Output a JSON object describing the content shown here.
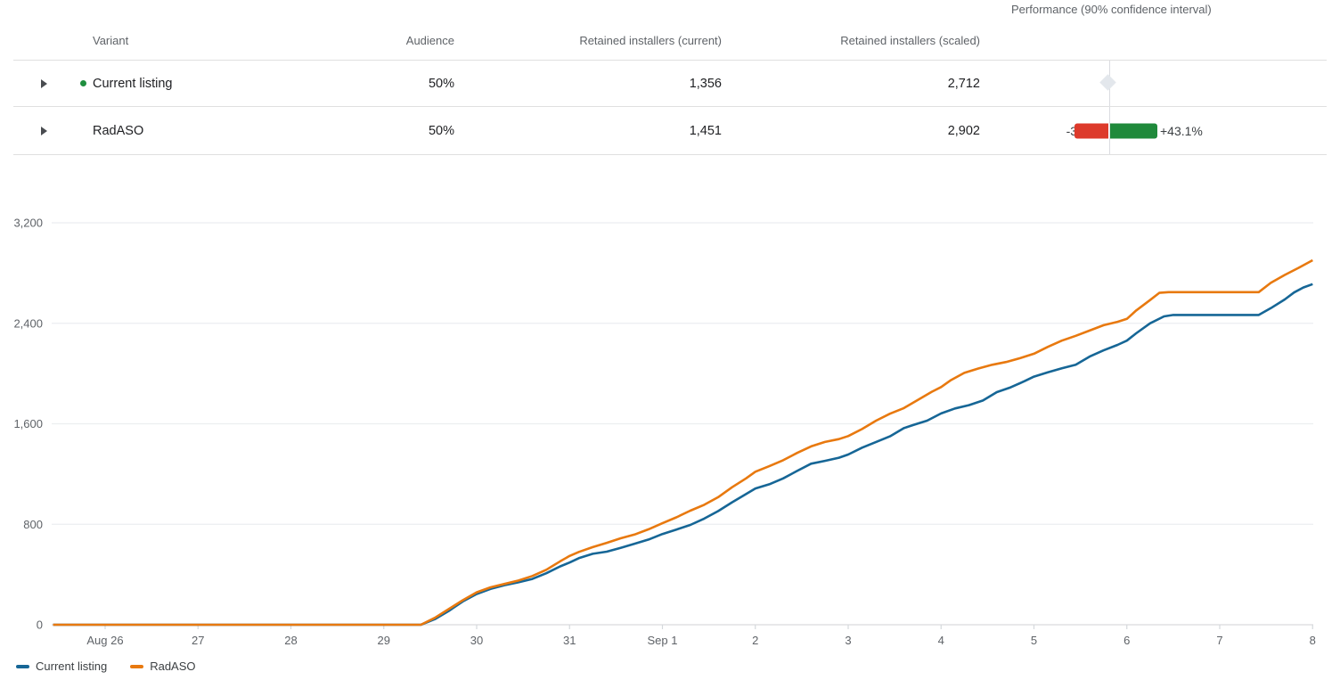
{
  "table": {
    "headers": {
      "variant": "Variant",
      "audience": "Audience",
      "current": "Retained installers (current)",
      "scaled": "Retained installers (scaled)",
      "performance": "Performance (90% confidence interval)"
    },
    "rows": [
      {
        "variant": "Current listing",
        "audience": "50%",
        "current": "1,356",
        "scaled": "2,712",
        "active_dot": true,
        "performance": {
          "type": "baseline-diamond"
        }
      },
      {
        "variant": "RadASO",
        "audience": "50%",
        "current": "1,451",
        "scaled": "2,902",
        "active_dot": false,
        "performance": {
          "type": "ci-bar",
          "low_label": "-30.8%",
          "high_label": "+43.1%",
          "low_pct": -30.8,
          "high_pct": 43.1
        }
      }
    ]
  },
  "colors": {
    "series_blue": "#166696",
    "series_orange": "#e8790f",
    "ci_red": "#dd3a2b",
    "ci_green": "#1f8a3b",
    "grid": "#eceef0",
    "axis_zero": "#d9dbde",
    "tick": "#d5d8dc",
    "axis_text": "#5f6368"
  },
  "chart_data": {
    "type": "line",
    "title": "",
    "xlabel": "",
    "ylabel": "",
    "x_unit": "days since Aug 26",
    "x_range": [
      -0.56,
      13
    ],
    "ylim": [
      0,
      3200
    ],
    "grid": "horizontal",
    "legend_position": "bottom-left",
    "y_ticks": [
      0,
      800,
      1600,
      2400,
      3200
    ],
    "y_tick_labels": [
      "0",
      "800",
      "1,600",
      "2,400",
      "3,200"
    ],
    "x_ticks": [
      0,
      1,
      2,
      3,
      4,
      5,
      6,
      7,
      8,
      9,
      10,
      11,
      12,
      13
    ],
    "x_tick_labels": [
      "Aug 26",
      "27",
      "28",
      "29",
      "30",
      "31",
      "Sep 1",
      "2",
      "3",
      "4",
      "5",
      "6",
      "7",
      "8"
    ],
    "series": [
      {
        "name": "Current listing",
        "color": "#166696",
        "points": [
          [
            -0.56,
            0
          ],
          [
            3.4,
            0
          ],
          [
            3.55,
            45
          ],
          [
            3.7,
            110
          ],
          [
            3.85,
            185
          ],
          [
            4.0,
            245
          ],
          [
            4.15,
            285
          ],
          [
            4.3,
            315
          ],
          [
            4.45,
            338
          ],
          [
            4.6,
            365
          ],
          [
            4.75,
            410
          ],
          [
            4.9,
            465
          ],
          [
            5.0,
            495
          ],
          [
            5.1,
            530
          ],
          [
            5.25,
            565
          ],
          [
            5.4,
            582
          ],
          [
            5.55,
            612
          ],
          [
            5.7,
            645
          ],
          [
            5.85,
            678
          ],
          [
            6.0,
            722
          ],
          [
            6.15,
            758
          ],
          [
            6.3,
            795
          ],
          [
            6.45,
            845
          ],
          [
            6.6,
            905
          ],
          [
            6.75,
            975
          ],
          [
            6.9,
            1040
          ],
          [
            7.0,
            1085
          ],
          [
            7.15,
            1118
          ],
          [
            7.3,
            1165
          ],
          [
            7.45,
            1225
          ],
          [
            7.6,
            1282
          ],
          [
            7.75,
            1305
          ],
          [
            7.9,
            1330
          ],
          [
            8.0,
            1355
          ],
          [
            8.15,
            1410
          ],
          [
            8.3,
            1455
          ],
          [
            8.45,
            1500
          ],
          [
            8.6,
            1565
          ],
          [
            8.7,
            1590
          ],
          [
            8.85,
            1625
          ],
          [
            9.0,
            1682
          ],
          [
            9.15,
            1722
          ],
          [
            9.3,
            1748
          ],
          [
            9.45,
            1785
          ],
          [
            9.6,
            1852
          ],
          [
            9.75,
            1890
          ],
          [
            9.9,
            1940
          ],
          [
            10.0,
            1975
          ],
          [
            10.15,
            2010
          ],
          [
            10.3,
            2042
          ],
          [
            10.45,
            2070
          ],
          [
            10.6,
            2135
          ],
          [
            10.75,
            2185
          ],
          [
            10.9,
            2228
          ],
          [
            11.0,
            2262
          ],
          [
            11.1,
            2320
          ],
          [
            11.25,
            2400
          ],
          [
            11.4,
            2455
          ],
          [
            11.5,
            2466
          ],
          [
            12.42,
            2466
          ],
          [
            12.55,
            2520
          ],
          [
            12.7,
            2590
          ],
          [
            12.8,
            2645
          ],
          [
            12.9,
            2685
          ],
          [
            13.0,
            2712
          ]
        ]
      },
      {
        "name": "RadASO",
        "color": "#e8790f",
        "points": [
          [
            -0.56,
            0
          ],
          [
            3.4,
            0
          ],
          [
            3.55,
            55
          ],
          [
            3.7,
            125
          ],
          [
            3.85,
            195
          ],
          [
            4.0,
            258
          ],
          [
            4.15,
            298
          ],
          [
            4.3,
            325
          ],
          [
            4.45,
            352
          ],
          [
            4.6,
            388
          ],
          [
            4.75,
            438
          ],
          [
            4.9,
            505
          ],
          [
            5.0,
            548
          ],
          [
            5.1,
            580
          ],
          [
            5.25,
            618
          ],
          [
            5.4,
            652
          ],
          [
            5.55,
            688
          ],
          [
            5.7,
            718
          ],
          [
            5.85,
            760
          ],
          [
            6.0,
            808
          ],
          [
            6.15,
            855
          ],
          [
            6.3,
            908
          ],
          [
            6.45,
            955
          ],
          [
            6.6,
            1015
          ],
          [
            6.75,
            1095
          ],
          [
            6.9,
            1165
          ],
          [
            7.0,
            1218
          ],
          [
            7.15,
            1262
          ],
          [
            7.3,
            1310
          ],
          [
            7.45,
            1368
          ],
          [
            7.6,
            1420
          ],
          [
            7.75,
            1455
          ],
          [
            7.9,
            1478
          ],
          [
            8.0,
            1502
          ],
          [
            8.15,
            1558
          ],
          [
            8.3,
            1625
          ],
          [
            8.45,
            1680
          ],
          [
            8.6,
            1725
          ],
          [
            8.75,
            1790
          ],
          [
            8.9,
            1855
          ],
          [
            9.0,
            1892
          ],
          [
            9.1,
            1945
          ],
          [
            9.25,
            2005
          ],
          [
            9.4,
            2040
          ],
          [
            9.55,
            2070
          ],
          [
            9.7,
            2092
          ],
          [
            9.85,
            2122
          ],
          [
            10.0,
            2158
          ],
          [
            10.15,
            2212
          ],
          [
            10.3,
            2262
          ],
          [
            10.45,
            2300
          ],
          [
            10.6,
            2342
          ],
          [
            10.75,
            2385
          ],
          [
            10.9,
            2412
          ],
          [
            11.0,
            2435
          ],
          [
            11.1,
            2502
          ],
          [
            11.25,
            2585
          ],
          [
            11.35,
            2642
          ],
          [
            11.45,
            2648
          ],
          [
            12.42,
            2648
          ],
          [
            12.55,
            2722
          ],
          [
            12.7,
            2785
          ],
          [
            12.85,
            2842
          ],
          [
            13.0,
            2902
          ]
        ]
      }
    ],
    "legend": [
      "Current listing",
      "RadASO"
    ]
  }
}
